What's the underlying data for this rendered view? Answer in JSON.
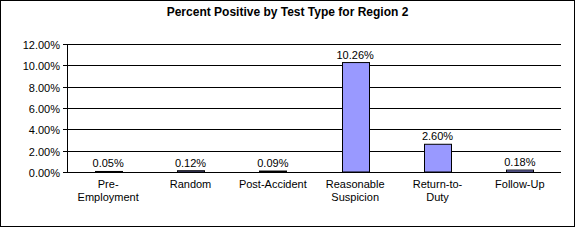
{
  "chart_data": {
    "type": "bar",
    "title": "Percent Positive by Test Type for Region 2",
    "categories": [
      "Pre-Employment",
      "Random",
      "Post-Accident",
      "Reasonable Suspicion",
      "Return-to-Duty",
      "Follow-Up"
    ],
    "values": [
      0.05,
      0.12,
      0.09,
      10.26,
      2.6,
      0.18
    ],
    "value_labels": [
      "0.05%",
      "0.12%",
      "0.09%",
      "10.26%",
      "2.60%",
      "0.18%"
    ],
    "color": "#9999ff",
    "ylim": [
      0,
      12
    ],
    "yticks": [
      {
        "value": 0,
        "label": "0.00%"
      },
      {
        "value": 2,
        "label": "2.00%"
      },
      {
        "value": 4,
        "label": "4.00%"
      },
      {
        "value": 6,
        "label": "6.00%"
      },
      {
        "value": 8,
        "label": "8.00%"
      },
      {
        "value": 10,
        "label": "10.00%"
      },
      {
        "value": 12,
        "label": "12.00%"
      }
    ],
    "grid": true,
    "data_labels": true
  }
}
